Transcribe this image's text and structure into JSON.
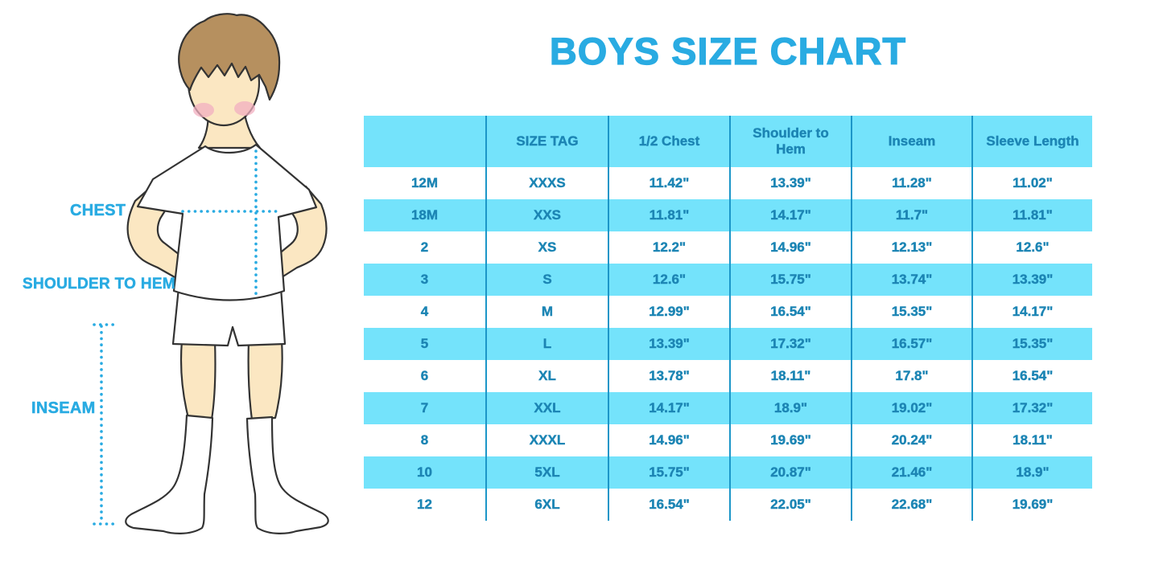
{
  "title": "BOYS SIZE CHART",
  "colors": {
    "accent": "#29ABE2",
    "table_text": "#1C85B4",
    "band": "#74E3FB",
    "divider": "#1C96C8",
    "skin": "#FBE7C2",
    "hair": "#B6905F",
    "blush": "#F2AFC0",
    "outline": "#333333"
  },
  "figure": {
    "chest_label": "CHEST",
    "shoulder_to_hem_label": "SHOULDER TO HEM",
    "inseam_label": "INSEAM"
  },
  "chart_data": {
    "type": "table",
    "title": "BOYS SIZE CHART",
    "columns": [
      "",
      "SIZE TAG",
      "1/2 Chest",
      "Shoulder to Hem",
      "Inseam",
      "Sleeve Length"
    ],
    "rows": [
      [
        "12M",
        "XXXS",
        "11.42\"",
        "13.39\"",
        "11.28\"",
        "11.02\""
      ],
      [
        "18M",
        "XXS",
        "11.81\"",
        "14.17\"",
        "11.7\"",
        "11.81\""
      ],
      [
        "2",
        "XS",
        "12.2\"",
        "14.96\"",
        "12.13\"",
        "12.6\""
      ],
      [
        "3",
        "S",
        "12.6\"",
        "15.75\"",
        "13.74\"",
        "13.39\""
      ],
      [
        "4",
        "M",
        "12.99\"",
        "16.54\"",
        "15.35\"",
        "14.17\""
      ],
      [
        "5",
        "L",
        "13.39\"",
        "17.32\"",
        "16.57\"",
        "15.35\""
      ],
      [
        "6",
        "XL",
        "13.78\"",
        "18.11\"",
        "17.8\"",
        "16.54\""
      ],
      [
        "7",
        "XXL",
        "14.17\"",
        "18.9\"",
        "19.02\"",
        "17.32\""
      ],
      [
        "8",
        "XXXL",
        "14.96\"",
        "19.69\"",
        "20.24\"",
        "18.11\""
      ],
      [
        "10",
        "5XL",
        "15.75\"",
        "20.87\"",
        "21.46\"",
        "18.9\""
      ],
      [
        "12",
        "6XL",
        "16.54\"",
        "22.05\"",
        "22.68\"",
        "19.69\""
      ]
    ]
  }
}
